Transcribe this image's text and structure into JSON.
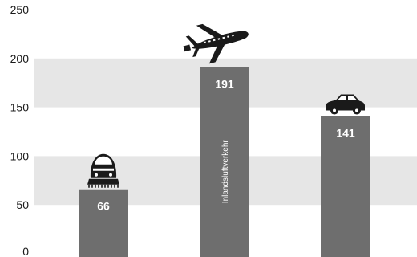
{
  "chart_data": {
    "type": "bar",
    "categories": [
      "",
      "",
      ""
    ],
    "values": [
      66,
      191,
      141
    ],
    "data_labels": [
      "66",
      "191",
      "141"
    ],
    "bar_inner_labels": [
      "",
      "Inlandsluftverkehr",
      ""
    ],
    "icons": [
      "train-icon",
      "airplane-icon",
      "car-icon"
    ],
    "title": "",
    "xlabel": "",
    "ylabel": "",
    "ylim": [
      0,
      250
    ],
    "yticks": [
      0,
      50,
      100,
      150,
      200,
      250
    ],
    "ytick_labels": [
      "0",
      "50",
      "100",
      "150",
      "200",
      "250"
    ],
    "grid": "alternating horizontal bands",
    "legend": "none",
    "colors": {
      "bar": "#6e6e6e",
      "band": "#e6e6e6",
      "background": "#ffffff",
      "icon": "#1a1a1a",
      "label_on_bar": "#ffffff"
    }
  }
}
